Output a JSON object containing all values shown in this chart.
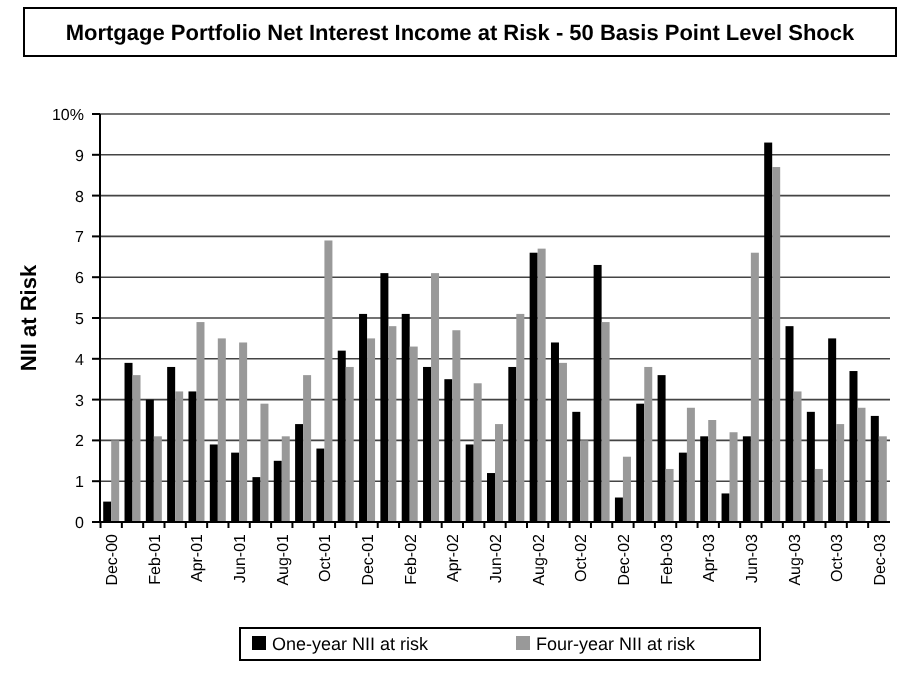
{
  "chart_data": {
    "type": "bar",
    "title": "Mortgage Portfolio Net Interest Income at Risk - 50 Basis Point Level Shock",
    "ylabel": "NII at Risk",
    "categories": [
      "Dec-00",
      null,
      "Feb-01",
      null,
      "Apr-01",
      null,
      "Jun-01",
      null,
      "Aug-01",
      null,
      "Oct-01",
      null,
      "Dec-01",
      null,
      "Feb-02",
      null,
      "Apr-02",
      null,
      "Jun-02",
      null,
      "Aug-02",
      null,
      "Oct-02",
      null,
      "Dec-02",
      null,
      "Feb-03",
      null,
      "Apr-03",
      null,
      "Jun-03",
      null,
      "Aug-03",
      null,
      "Oct-03",
      null,
      "Dec-03"
    ],
    "series": [
      {
        "name": "One-year NII at risk",
        "color": "#000000",
        "values": [
          0.5,
          3.9,
          3.0,
          3.8,
          3.2,
          1.9,
          1.7,
          1.1,
          1.5,
          2.4,
          1.8,
          4.2,
          5.1,
          6.1,
          5.1,
          3.8,
          3.5,
          1.9,
          1.2,
          3.8,
          6.6,
          4.4,
          2.7,
          6.3,
          0.6,
          2.9,
          3.6,
          1.7,
          2.1,
          0.7,
          2.1,
          9.3,
          4.8,
          2.7,
          4.5,
          3.7,
          2.6
        ]
      },
      {
        "name": "Four-year NII at risk",
        "color": "#999999",
        "values": [
          2.0,
          3.6,
          2.1,
          3.2,
          4.9,
          4.5,
          4.4,
          2.9,
          2.1,
          3.6,
          6.9,
          3.8,
          4.5,
          4.8,
          4.3,
          6.1,
          4.7,
          3.4,
          2.4,
          5.1,
          6.7,
          3.9,
          2.0,
          4.9,
          1.6,
          3.8,
          1.3,
          2.8,
          2.5,
          2.2,
          6.6,
          8.7,
          3.2,
          1.3,
          2.4,
          2.8,
          2.1
        ]
      }
    ],
    "ylim": [
      0,
      10
    ],
    "yticks": [
      0,
      1,
      2,
      3,
      4,
      5,
      6,
      7,
      8,
      9,
      {
        "value": 10,
        "label": "10%"
      }
    ],
    "grid": "y",
    "legend": "bottom"
  }
}
